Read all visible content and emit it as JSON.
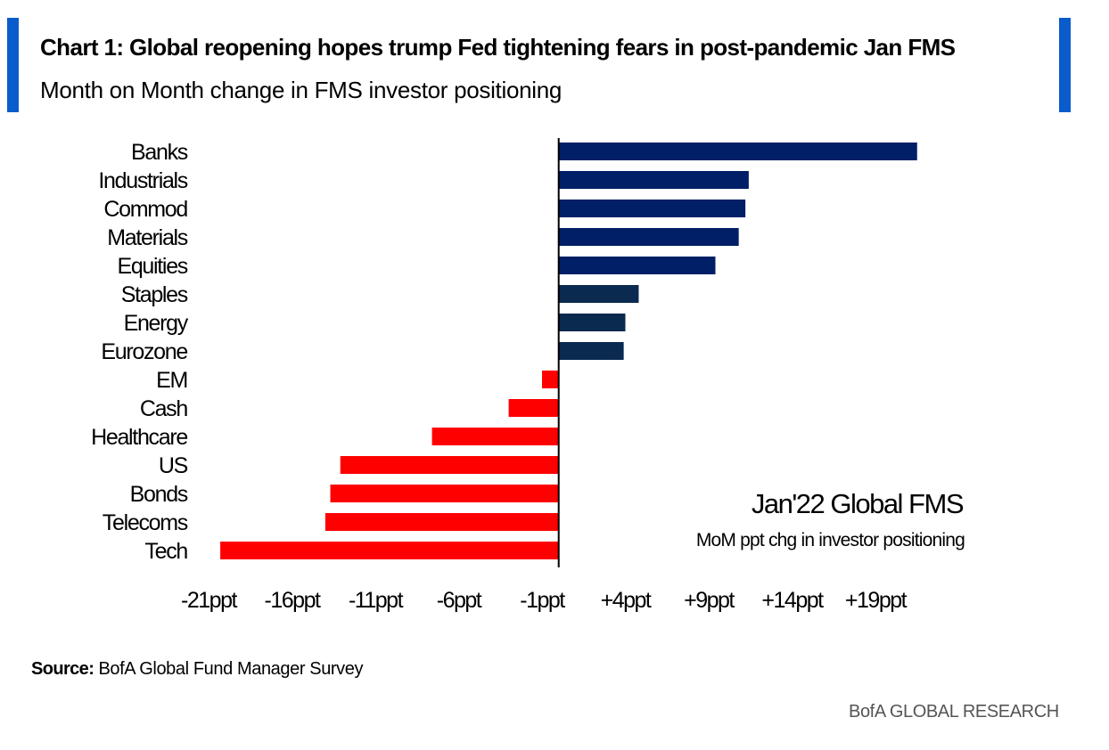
{
  "header": {
    "title": "Chart 1: Global reopening hopes trump Fed tightening fears in post-pandemic Jan FMS",
    "subtitle": "Month on Month change in FMS investor positioning"
  },
  "footer": {
    "source_label": "Source:",
    "source_text": "BofA Global Fund Manager Survey",
    "brand": "BofA GLOBAL RESEARCH"
  },
  "colors": {
    "accent": "#0a5ccc",
    "positive_dark": "#001f66",
    "positive": "#0b2a4f",
    "negative": "#ff0000"
  },
  "chart_data": {
    "type": "bar",
    "orientation": "horizontal",
    "categories": [
      "Banks",
      "Industrials",
      "Commod",
      "Materials",
      "Equities",
      "Staples",
      "Energy",
      "Eurozone",
      "EM",
      "Cash",
      "Healthcare",
      "US",
      "Bonds",
      "Telecoms",
      "Tech"
    ],
    "values": [
      21.5,
      11.4,
      11.2,
      10.8,
      9.4,
      4.8,
      4.0,
      3.9,
      -1.0,
      -3.0,
      -7.6,
      -13.1,
      -13.7,
      -14.0,
      -20.3
    ],
    "xticks": [
      -21,
      -16,
      -11,
      -6,
      -1,
      4,
      9,
      14,
      19
    ],
    "xtick_labels": [
      "-21ppt",
      "-16ppt",
      "-11ppt",
      "-6ppt",
      "-1ppt",
      "+4ppt",
      "+9ppt",
      "+14ppt",
      "+19ppt"
    ],
    "xlim": [
      -21,
      19
    ],
    "grid": false,
    "annotation": {
      "title": "Jan'22 Global FMS",
      "subtitle": "MoM ppt chg in investor positioning"
    }
  }
}
